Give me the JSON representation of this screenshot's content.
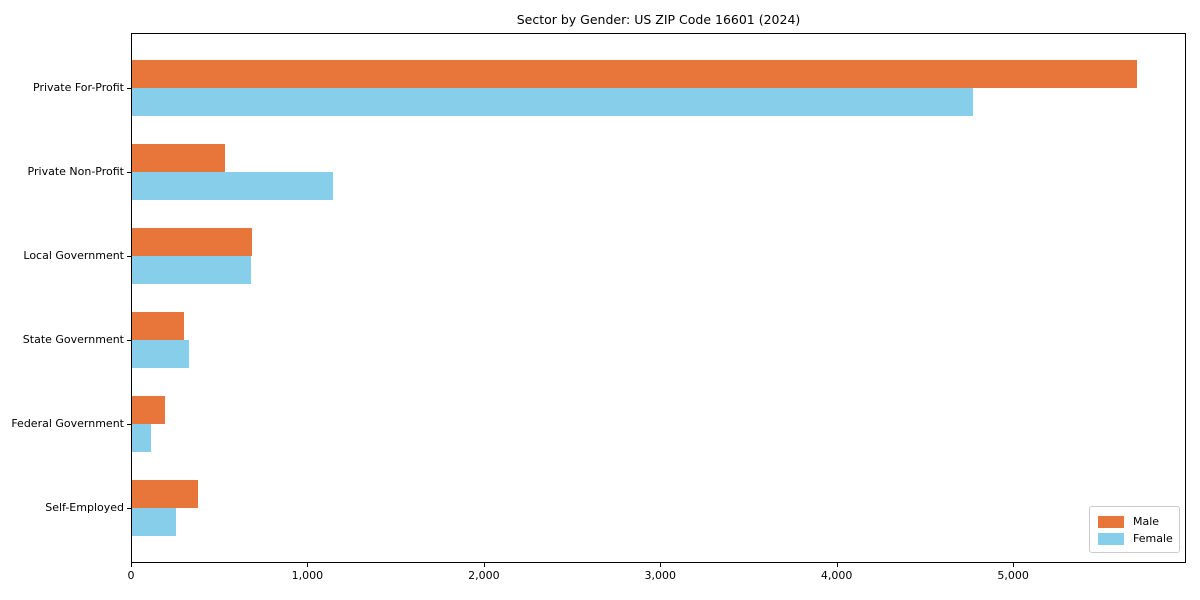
{
  "title": "Sector by Gender: US ZIP Code 16601 (2024)",
  "chart_data": {
    "type": "bar",
    "orientation": "horizontal",
    "title": "Sector by Gender: US ZIP Code 16601 (2024)",
    "categories": [
      "Private For-Profit",
      "Private Non-Profit",
      "Local Government",
      "State Government",
      "Federal Government",
      "Self-Employed"
    ],
    "series": [
      {
        "name": "Male",
        "color": "#E8763B",
        "values": [
          5695,
          527,
          680,
          293,
          189,
          374
        ]
      },
      {
        "name": "Female",
        "color": "#87CEEB",
        "values": [
          4766,
          1139,
          672,
          325,
          106,
          249
        ]
      }
    ],
    "xlabel": "",
    "ylabel": "",
    "xlim": [
      0,
      5980
    ],
    "xticks": [
      0,
      1000,
      2000,
      3000,
      4000,
      5000
    ],
    "xtick_labels": [
      "0",
      "1,000",
      "2,000",
      "3,000",
      "4,000",
      "5,000"
    ],
    "grid": false,
    "legend_position": "lower right"
  },
  "legend": {
    "items": [
      {
        "label": "Male",
        "color": "#E8763B"
      },
      {
        "label": "Female",
        "color": "#87CEEB"
      }
    ]
  }
}
